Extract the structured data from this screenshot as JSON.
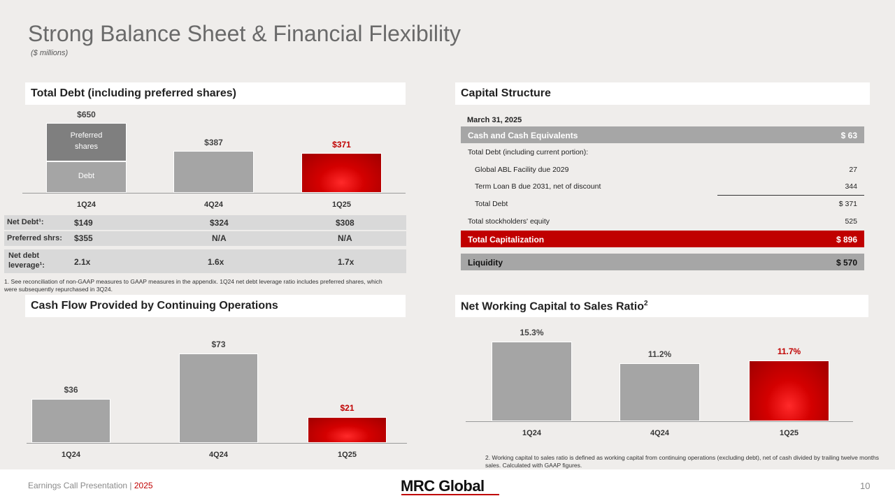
{
  "title": "Strong Balance Sheet & Financial Flexibility",
  "subtitle": "($ millions)",
  "total_debt": {
    "header": "Total Debt  (including preferred shares)",
    "segment_labels": {
      "preferred": "Preferred shares",
      "debt": "Debt"
    },
    "metrics": [
      {
        "label": "Net Debt¹:",
        "values": [
          "$149",
          "$324",
          "$308"
        ]
      },
      {
        "label": "Preferred shrs:",
        "values": [
          "$355",
          "N/A",
          "N/A"
        ]
      },
      {
        "label": "Net debt leverage¹:",
        "values": [
          "2.1x",
          "1.6x",
          "1.7x"
        ]
      }
    ],
    "footnote": "1.   See reconciliation of non-GAAP measures to GAAP measures in the appendix. 1Q24 net debt leverage ratio includes preferred shares, which were subsequently repurchased in 3Q24."
  },
  "capital_structure": {
    "header": "Capital Structure",
    "date": "March 31, 2025",
    "cash": {
      "label": "Cash and Cash Equivalents",
      "value": "$ 63"
    },
    "total_debt_heading": "Total Debt (including current portion):",
    "abl": {
      "label": "Global ABL Facility due 2029",
      "value": "27"
    },
    "term_loan": {
      "label": "Term Loan B due 2031, net of discount",
      "value": "344"
    },
    "total_debt": {
      "label": "Total Debt",
      "value": "$ 371"
    },
    "equity": {
      "label": "Total stockholders' equity",
      "value": "525"
    },
    "total_cap": {
      "label": "Total Capitalization",
      "value": "$ 896"
    },
    "liquidity": {
      "label": "Liquidity",
      "value": "$ 570"
    }
  },
  "cash_flow": {
    "header": "Cash Flow Provided by Continuing Operations"
  },
  "nwc": {
    "header": "Net Working Capital to Sales Ratio",
    "header_sup": "2",
    "footnote": "2.    Working capital to sales ratio is defined as working capital from continuing operations (excluding debt), net of cash divided by trailing twelve months sales. Calculated with GAAP figures."
  },
  "footer": {
    "text": "Earnings Call Presentation | ",
    "year": "2025",
    "logo": "MRC Global",
    "page_number": "10"
  },
  "colors": {
    "red": "#c00000",
    "gray": "#a5a5a5",
    "dark_gray": "#7f7f7f"
  },
  "chart_data": [
    {
      "type": "bar",
      "stacked": true,
      "categories": [
        "1Q24",
        "4Q24",
        "1Q25"
      ],
      "series": [
        {
          "name": "Debt",
          "values": [
            295,
            387,
            371
          ]
        },
        {
          "name": "Preferred shares",
          "values": [
            355,
            0,
            0
          ]
        }
      ],
      "value_labels": [
        "$650",
        "$387",
        "$371"
      ],
      "title": "Total Debt  (including preferred shares)",
      "ylim": [
        0,
        650
      ]
    },
    {
      "type": "bar",
      "categories": [
        "1Q24",
        "4Q24",
        "1Q25"
      ],
      "values": [
        36,
        73,
        21
      ],
      "value_labels": [
        "$36",
        "$73",
        "$21"
      ],
      "title": "Cash Flow Provided by Continuing Operations",
      "ylim": [
        0,
        73
      ]
    },
    {
      "type": "bar",
      "categories": [
        "1Q24",
        "4Q24",
        "1Q25"
      ],
      "values": [
        15.3,
        11.2,
        11.7
      ],
      "value_labels": [
        "15.3%",
        "11.2%",
        "11.7%"
      ],
      "title": "Net Working Capital to Sales Ratio",
      "ylim": [
        0,
        15.3
      ]
    }
  ]
}
